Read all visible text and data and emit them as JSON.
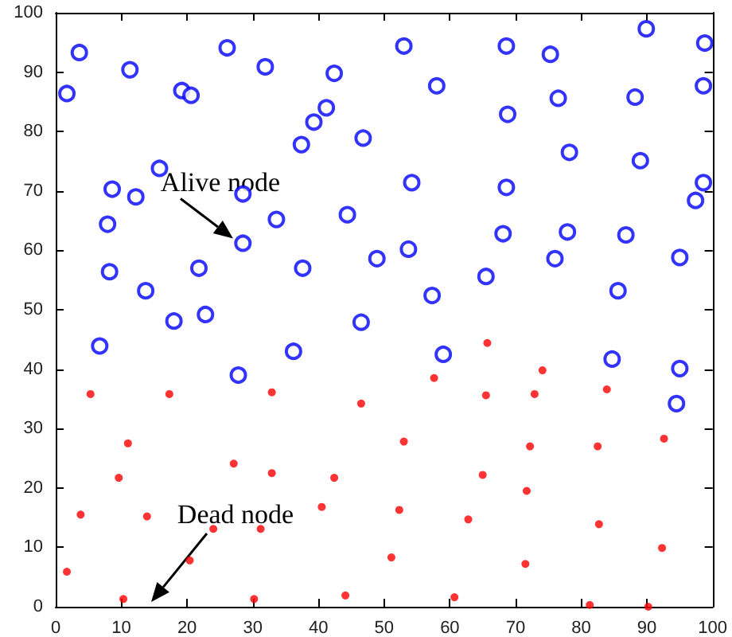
{
  "chart_data": {
    "type": "scatter",
    "xlim": [
      0,
      100
    ],
    "ylim": [
      0,
      100
    ],
    "xticks": [
      0,
      10,
      20,
      30,
      40,
      50,
      60,
      70,
      80,
      90,
      100
    ],
    "yticks": [
      0,
      10,
      20,
      30,
      40,
      50,
      60,
      70,
      80,
      90,
      100
    ],
    "grid": false,
    "marker": "circle",
    "series": [
      {
        "color": "#0000ff",
        "x": [
          1.7,
          3.6,
          11.3,
          26.1,
          19.2,
          20.6,
          31.9,
          42.4,
          37.4,
          39.3,
          41.2,
          46.8,
          15.8,
          8.6,
          12.2,
          28.5,
          33.6,
          7.9,
          28.5,
          44.4,
          8.2,
          13.7,
          21.8,
          37.6,
          48.9,
          18.0,
          22.8,
          6.7,
          36.2,
          27.8,
          46.5,
          53.0,
          68.6,
          75.3,
          89.9,
          98.8,
          58.0,
          76.5,
          88.2,
          98.6,
          68.8,
          78.2,
          89.0,
          54.2,
          68.6,
          98.6,
          97.4,
          68.1,
          77.9,
          86.8,
          53.7,
          76.0,
          95.0,
          65.5,
          57.3,
          85.6,
          59.0,
          84.7,
          95.0,
          94.5
        ],
        "values": [
          86.4,
          93.3,
          90.4,
          94.1,
          86.9,
          86.1,
          90.9,
          89.8,
          77.8,
          81.6,
          84.0,
          78.9,
          73.8,
          70.3,
          69.0,
          69.5,
          65.2,
          64.4,
          61.2,
          66.0,
          56.4,
          53.2,
          57.0,
          57.0,
          58.6,
          48.1,
          49.2,
          43.9,
          43.0,
          39.0,
          47.9,
          94.4,
          94.4,
          93.0,
          97.3,
          94.9,
          87.7,
          85.6,
          85.8,
          87.7,
          82.9,
          76.5,
          75.1,
          71.4,
          70.6,
          71.4,
          68.4,
          62.8,
          63.1,
          62.6,
          60.2,
          58.6,
          58.8,
          55.6,
          52.4,
          53.2,
          42.5,
          41.7,
          40.1,
          34.2
        ]
      },
      {
        "color": "#ff0000",
        "x": [
          5.3,
          17.3,
          32.9,
          46.5,
          11.0,
          27.1,
          32.9,
          9.6,
          42.4,
          3.8,
          13.9,
          40.5,
          24.0,
          31.2,
          20.4,
          1.7,
          10.3,
          30.2,
          44.1,
          65.7,
          74.1,
          57.6,
          65.5,
          72.9,
          83.9,
          53.0,
          72.2,
          82.5,
          92.6,
          65.0,
          71.7,
          52.3,
          62.8,
          82.7,
          51.1,
          71.5,
          92.3,
          60.7,
          81.3,
          90.2
        ],
        "values": [
          35.8,
          35.8,
          36.1,
          34.2,
          27.5,
          24.1,
          22.5,
          21.7,
          21.7,
          15.5,
          15.2,
          16.8,
          13.1,
          13.1,
          7.8,
          5.9,
          1.3,
          1.3,
          1.9,
          44.4,
          39.8,
          38.5,
          35.6,
          35.8,
          36.6,
          27.8,
          27.0,
          27.0,
          28.3,
          22.2,
          19.5,
          16.3,
          14.7,
          13.9,
          8.3,
          7.2,
          9.9,
          1.6,
          0.3,
          0.0
        ]
      }
    ],
    "annotations": [
      {
        "text": "Alive node",
        "x": 27,
        "y": 62
      },
      "Dead node"
    ]
  }
}
